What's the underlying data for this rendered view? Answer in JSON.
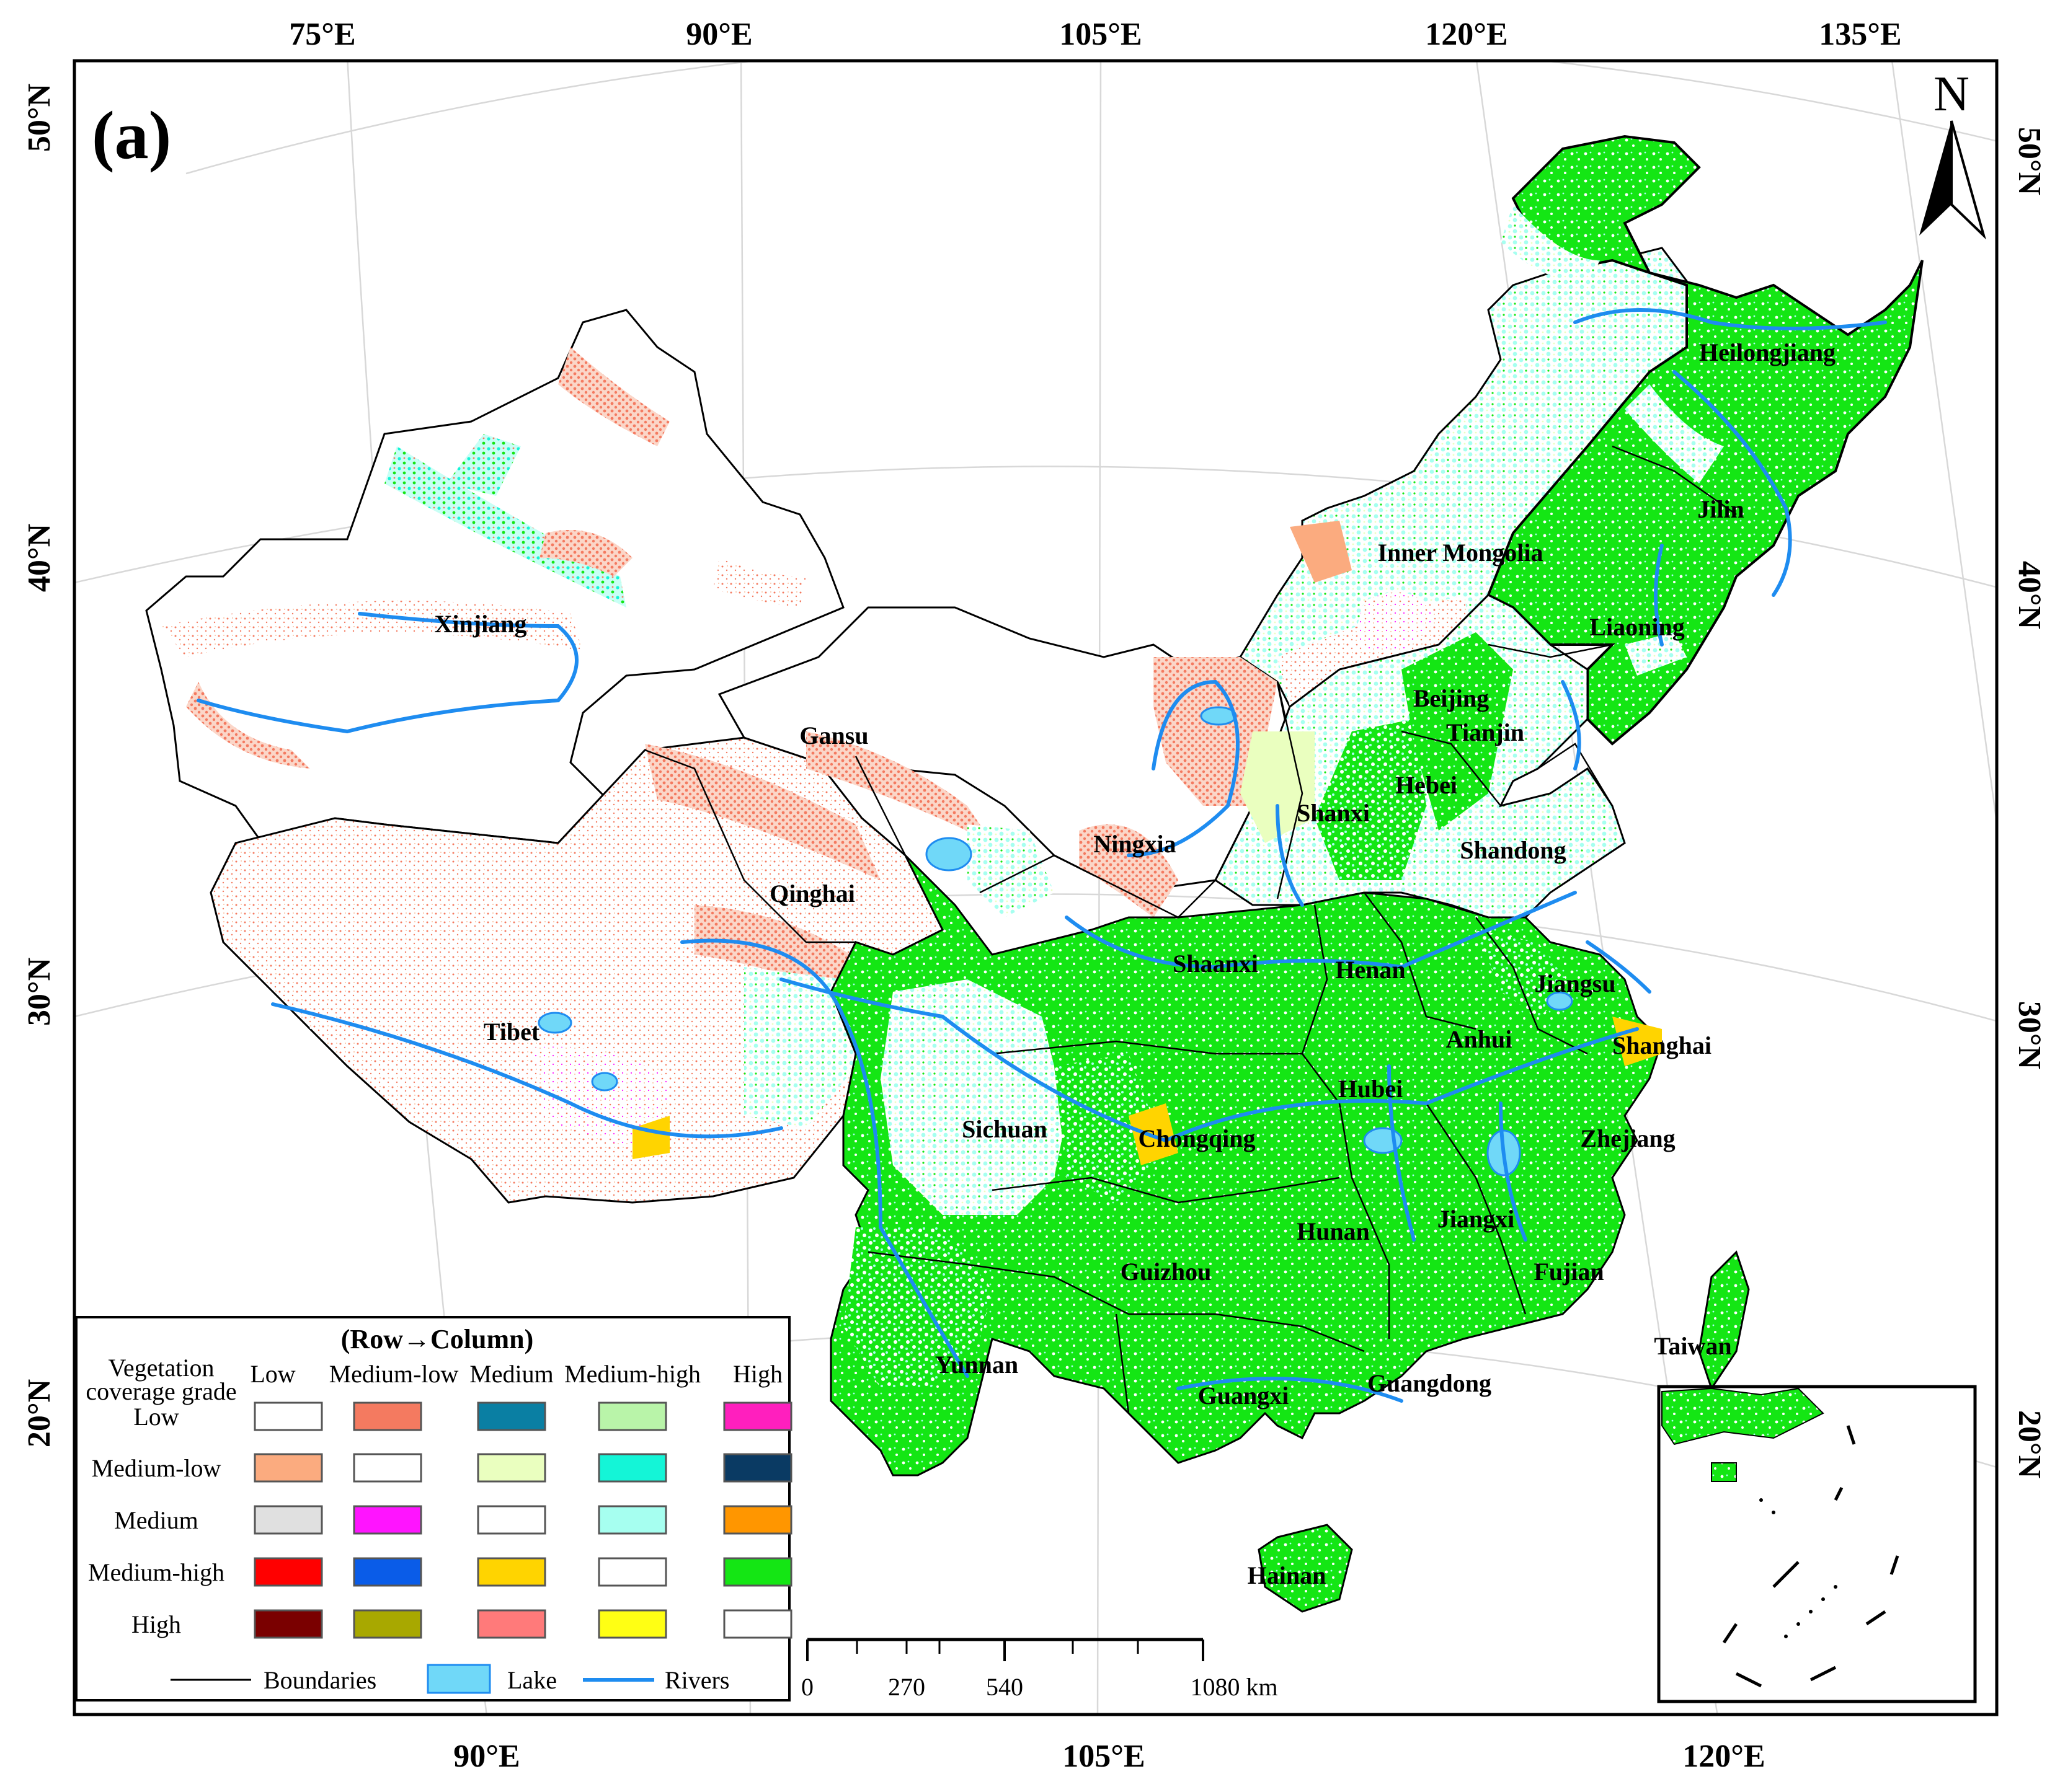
{
  "panel_label": "(a)",
  "north_label": "N",
  "graticule": {
    "top": [
      "75°E",
      "90°E",
      "105°E",
      "120°E",
      "135°E"
    ],
    "bottom": [
      "90°E",
      "105°E",
      "120°E"
    ],
    "left": [
      "50°N",
      "40°N",
      "30°N",
      "20°N"
    ],
    "right": [
      "50°N",
      "40°N",
      "30°N",
      "20°N"
    ]
  },
  "provinces": [
    "Heilongjiang",
    "Jilin",
    "Inner Mongolia",
    "Liaoning",
    "Xinjiang",
    "Beijing",
    "Tianjin",
    "Gansu",
    "Hebei",
    "Shanxi",
    "Ningxia",
    "Shandong",
    "Qinghai",
    "Shaanxi",
    "Henan",
    "Jiangsu",
    "Tibet",
    "Anhui",
    "Shanghai",
    "Hubei",
    "Sichuan",
    "Chongqing",
    "Zhejiang",
    "Hunan",
    "Jiangxi",
    "Guizhou",
    "Fujian",
    "Taiwan",
    "Yunnan",
    "Guangxi",
    "Guangdong",
    "Hainan"
  ],
  "legend": {
    "title": "(Row→Column)",
    "row_header": [
      "Vegetation",
      "coverage grade"
    ],
    "columns": [
      "Low",
      "Medium-low",
      "Medium",
      "Medium-high",
      "High"
    ],
    "rows": [
      "Low",
      "Medium-low",
      "Medium",
      "Medium-high",
      "High"
    ],
    "colors": [
      [
        "#ffffff",
        "#f47a60",
        "#0a7fa3",
        "#b9f4a9",
        "#ff1fbe"
      ],
      [
        "#fbab7f",
        "#ffffff",
        "#eaffbf",
        "#14f5d7",
        "#0a3a63"
      ],
      [
        "#e0e0e0",
        "#ff14ff",
        "#ffffff",
        "#a6fff0",
        "#ff9600"
      ],
      [
        "#ff0000",
        "#0a5ce8",
        "#ffd400",
        "#ffffff",
        "#14e614"
      ],
      [
        "#7a0000",
        "#a8a800",
        "#ff7a7a",
        "#ffff14",
        "#ffffff"
      ]
    ],
    "items": [
      {
        "label": "Boundaries",
        "color": "#000000"
      },
      {
        "label": "Lake",
        "color": "#70d8f8"
      },
      {
        "label": "Rivers",
        "color": "#1e8cf0"
      }
    ]
  },
  "scale_bar": {
    "ticks": [
      "0",
      "270",
      "540",
      "1080 km"
    ]
  },
  "colors": {
    "high_gain": "#14e614",
    "mid_low": "#f47a60",
    "medium_high_gain": "#a6fff0",
    "river": "#1e8cf0",
    "lake": "#70d8f8",
    "boundary": "#000000"
  }
}
